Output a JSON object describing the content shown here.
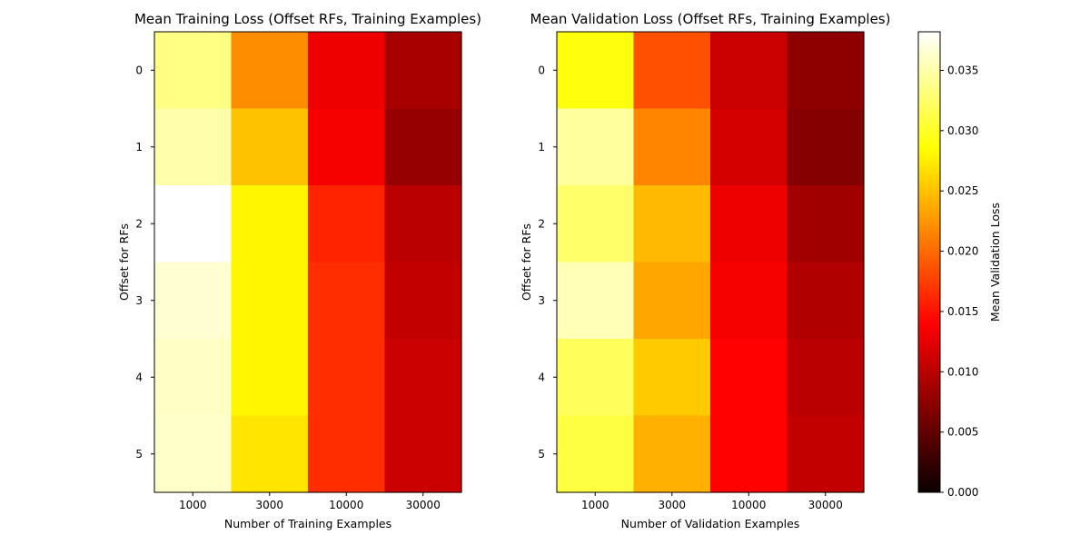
{
  "chart_data": [
    {
      "type": "heatmap",
      "title": "Mean Training Loss (Offset RFs, Training Examples)",
      "xlabel": "Number of Training Examples",
      "ylabel": "Offset for RFs",
      "x": [
        "1000",
        "3000",
        "10000",
        "30000"
      ],
      "y": [
        "0",
        "1",
        "2",
        "3",
        "4",
        "5"
      ],
      "values": [
        [
          0.0335,
          0.022,
          0.013,
          0.009
        ],
        [
          0.035,
          0.025,
          0.0135,
          0.008
        ],
        [
          0.0382,
          0.028,
          0.016,
          0.01
        ],
        [
          0.0365,
          0.028,
          0.0165,
          0.0105
        ],
        [
          0.036,
          0.028,
          0.0165,
          0.011
        ],
        [
          0.0362,
          0.027,
          0.0165,
          0.011
        ]
      ]
    },
    {
      "type": "heatmap",
      "title": "Mean Validation Loss (Offset RFs, Training Examples)",
      "xlabel": "Number of Validation Examples",
      "ylabel": "Offset for RFs",
      "x": [
        "1000",
        "3000",
        "10000",
        "30000"
      ],
      "y": [
        "0",
        "1",
        "2",
        "3",
        "4",
        "5"
      ],
      "values": [
        [
          0.029,
          0.0185,
          0.011,
          0.0075
        ],
        [
          0.0345,
          0.0215,
          0.0115,
          0.007
        ],
        [
          0.0325,
          0.0245,
          0.013,
          0.0085
        ],
        [
          0.0355,
          0.0235,
          0.0135,
          0.0095
        ],
        [
          0.032,
          0.0255,
          0.014,
          0.01
        ],
        [
          0.031,
          0.024,
          0.014,
          0.0105
        ]
      ]
    }
  ],
  "colorbar": {
    "label": "Mean Validation Loss",
    "colormap": "hot",
    "range": [
      0,
      0.0382
    ],
    "ticks": [
      0.0,
      0.005,
      0.01,
      0.015,
      0.02,
      0.025,
      0.03,
      0.035
    ],
    "tick_labels": [
      "0.000",
      "0.005",
      "0.010",
      "0.015",
      "0.020",
      "0.025",
      "0.030",
      "0.035"
    ]
  }
}
